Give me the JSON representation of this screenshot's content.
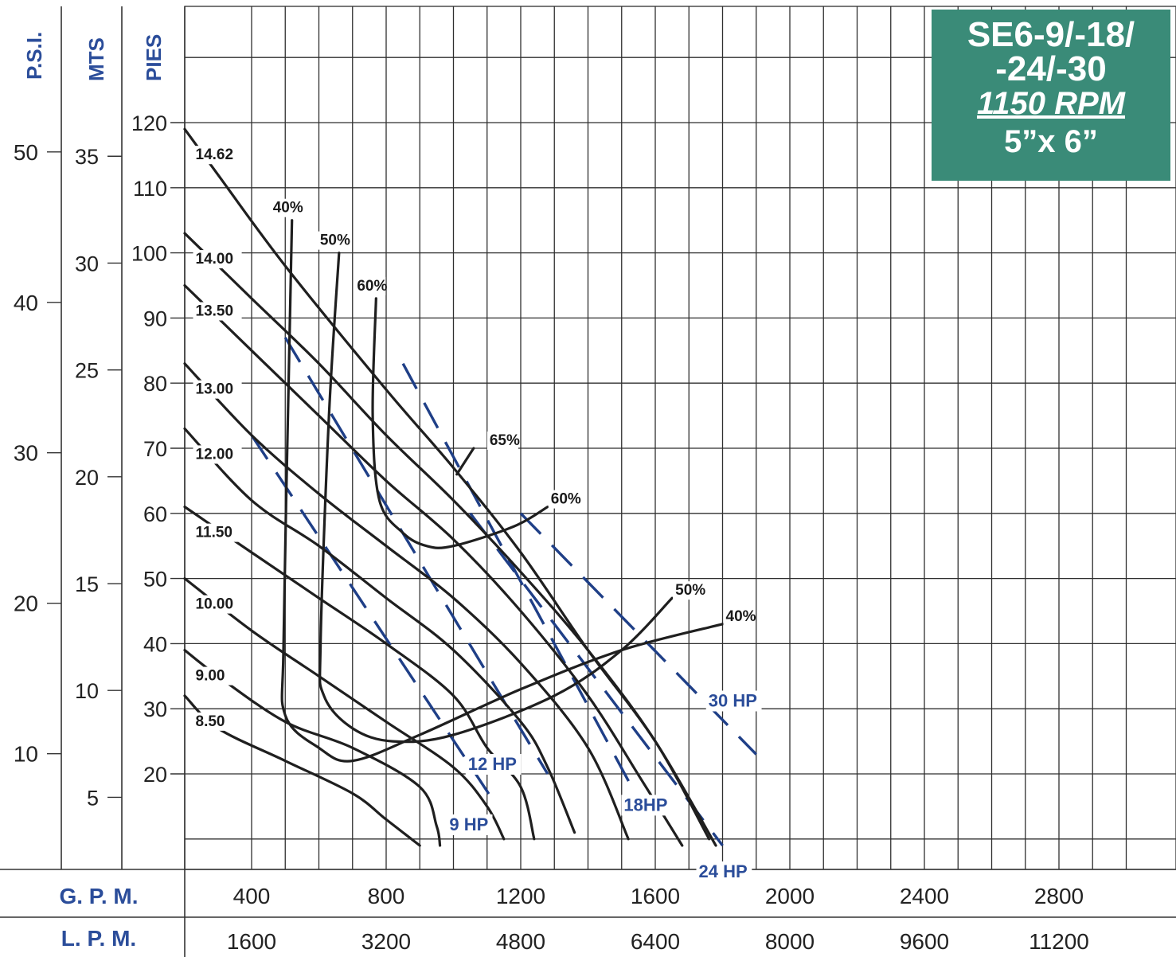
{
  "title_box": {
    "line1": "SE6-9/-18/",
    "line2": "-24/-30",
    "speed": "1150 RPM",
    "size": "5”x 6”",
    "background": "#3a8b78"
  },
  "chart_data": {
    "type": "line",
    "title": "SE6-9/-18/-24/-30 1150 RPM 5”x 6”",
    "x_axes": [
      {
        "label": "G. P. M.",
        "unit": "GPM",
        "ticks": [
          400,
          800,
          1200,
          1600,
          2000,
          2400,
          2800
        ]
      },
      {
        "label": "L. P. M.",
        "unit": "LPM",
        "ticks": [
          1600,
          3200,
          4800,
          6400,
          8000,
          9600,
          11200
        ]
      }
    ],
    "y_axes": [
      {
        "label": "P.S.I.",
        "unit": "psi",
        "ticks": [
          10,
          20,
          30,
          40,
          50
        ]
      },
      {
        "label": "MTS",
        "unit": "m",
        "ticks": [
          5,
          10,
          15,
          20,
          25,
          30,
          35
        ]
      },
      {
        "label": "PIES",
        "unit": "ft",
        "ticks": [
          20,
          30,
          40,
          50,
          60,
          70,
          80,
          90,
          100,
          110,
          120
        ]
      }
    ],
    "xlim": [
      200,
      3100
    ],
    "ylim_ft": [
      7,
      140
    ],
    "grid": true,
    "x_unit": "GPM",
    "y_unit": "ft",
    "impeller_curves": [
      {
        "name": "14.62",
        "points": [
          [
            200,
            119
          ],
          [
            300,
            112
          ],
          [
            500,
            98
          ],
          [
            800,
            79
          ],
          [
            1000,
            67
          ],
          [
            1200,
            54
          ],
          [
            1400,
            39
          ],
          [
            1600,
            25
          ],
          [
            1780,
            9
          ]
        ]
      },
      {
        "name": "14.00",
        "points": [
          [
            200,
            103
          ],
          [
            400,
            93
          ],
          [
            600,
            83
          ],
          [
            800,
            72
          ],
          [
            1000,
            62
          ],
          [
            1200,
            51
          ],
          [
            1400,
            39
          ],
          [
            1600,
            25
          ],
          [
            1760,
            10
          ]
        ]
      },
      {
        "name": "13.50",
        "points": [
          [
            200,
            95
          ],
          [
            400,
            85
          ],
          [
            600,
            75
          ],
          [
            800,
            65
          ],
          [
            1000,
            56
          ],
          [
            1200,
            45
          ],
          [
            1400,
            32
          ],
          [
            1560,
            19
          ],
          [
            1680,
            9
          ]
        ]
      },
      {
        "name": "13.00",
        "points": [
          [
            200,
            83
          ],
          [
            400,
            72
          ],
          [
            600,
            63
          ],
          [
            800,
            55
          ],
          [
            1000,
            47
          ],
          [
            1200,
            37
          ],
          [
            1400,
            24
          ],
          [
            1520,
            10
          ]
        ]
      },
      {
        "name": "12.00",
        "points": [
          [
            200,
            73
          ],
          [
            400,
            62
          ],
          [
            600,
            55
          ],
          [
            800,
            47
          ],
          [
            1000,
            39
          ],
          [
            1200,
            28
          ],
          [
            1280,
            21
          ],
          [
            1360,
            11
          ]
        ]
      },
      {
        "name": "11.50",
        "points": [
          [
            200,
            61
          ],
          [
            400,
            54
          ],
          [
            600,
            47
          ],
          [
            800,
            40
          ],
          [
            1000,
            32
          ],
          [
            1100,
            24
          ],
          [
            1200,
            18
          ],
          [
            1240,
            10
          ]
        ]
      },
      {
        "name": "10.00",
        "points": [
          [
            200,
            50
          ],
          [
            400,
            42
          ],
          [
            600,
            35
          ],
          [
            800,
            28
          ],
          [
            1000,
            21
          ],
          [
            1100,
            15
          ],
          [
            1150,
            10
          ]
        ]
      },
      {
        "name": "9.00",
        "points": [
          [
            200,
            39
          ],
          [
            300,
            35
          ],
          [
            500,
            28
          ],
          [
            700,
            24
          ],
          [
            900,
            18
          ],
          [
            950,
            12
          ],
          [
            960,
            9
          ]
        ]
      },
      {
        "name": "8.50",
        "points": [
          [
            200,
            32
          ],
          [
            300,
            27
          ],
          [
            500,
            22
          ],
          [
            700,
            17
          ],
          [
            800,
            13
          ],
          [
            900,
            9
          ]
        ]
      }
    ],
    "efficiency_curves": [
      {
        "name": "40%",
        "points": [
          [
            520,
            105
          ],
          [
            510,
            80
          ],
          [
            495,
            40
          ],
          [
            500,
            29
          ],
          [
            600,
            24
          ],
          [
            700,
            22
          ],
          [
            900,
            26
          ],
          [
            1200,
            33
          ],
          [
            1500,
            39
          ],
          [
            1800,
            43
          ]
        ]
      },
      {
        "name": "50%",
        "points": [
          [
            660,
            100
          ],
          [
            630,
            75
          ],
          [
            605,
            40
          ],
          [
            615,
            32
          ],
          [
            700,
            27
          ],
          [
            820,
            25
          ],
          [
            1000,
            26
          ],
          [
            1300,
            32
          ],
          [
            1500,
            39
          ],
          [
            1650,
            47
          ]
        ]
      },
      {
        "name": "60%",
        "points": [
          [
            770,
            93
          ],
          [
            760,
            75
          ],
          [
            780,
            62
          ],
          [
            850,
            57
          ],
          [
            920,
            55
          ],
          [
            1000,
            55
          ],
          [
            1180,
            58
          ],
          [
            1280,
            61
          ]
        ]
      },
      {
        "name": "65%",
        "points": [
          [
            1060,
            70
          ],
          [
            1010,
            66
          ]
        ]
      }
    ],
    "power_lines": [
      {
        "name": "9 HP",
        "points": [
          [
            400,
            72
          ],
          [
            1130,
            15
          ]
        ]
      },
      {
        "name": "12 HP",
        "points": [
          [
            500,
            87
          ],
          [
            1280,
            20
          ]
        ]
      },
      {
        "name": "18HP",
        "points": [
          [
            850,
            83
          ],
          [
            1530,
            18
          ]
        ]
      },
      {
        "name": "24 HP",
        "points": [
          [
            1050,
            60
          ],
          [
            1800,
            9
          ]
        ]
      },
      {
        "name": "30 HP",
        "points": [
          [
            1200,
            60
          ],
          [
            1900,
            23
          ]
        ]
      }
    ]
  }
}
